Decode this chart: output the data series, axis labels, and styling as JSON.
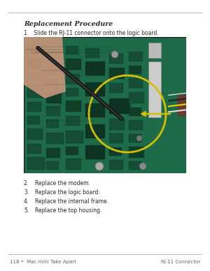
{
  "bg_color": "#ffffff",
  "page_width": 3.0,
  "page_height": 3.88,
  "top_line_color": "#999999",
  "title": "Replacement Procedure",
  "title_fontsize": 6.8,
  "step1_text": "1.   Slide the RJ-11 connector onto the logic board.",
  "step1_fontsize": 5.5,
  "steps_below": [
    {
      "num": "2.",
      "text": "Replace the modem."
    },
    {
      "num": "3.",
      "text": "Replace the logic board."
    },
    {
      "num": "4.",
      "text": "Replace the internal frame."
    },
    {
      "num": "5.",
      "text": "Replace the top housing."
    }
  ],
  "steps_fontsize": 5.5,
  "footer_left_text": "118 •  Mac mini Take Apart",
  "footer_right_text": "RJ-11 Connector",
  "footer_fontsize": 5.0,
  "text_color": "#2a2a2a",
  "footer_color": "#666666",
  "board_color": "#1e6b4a",
  "board_dark": "#154d36",
  "board_darker": "#0d3324"
}
